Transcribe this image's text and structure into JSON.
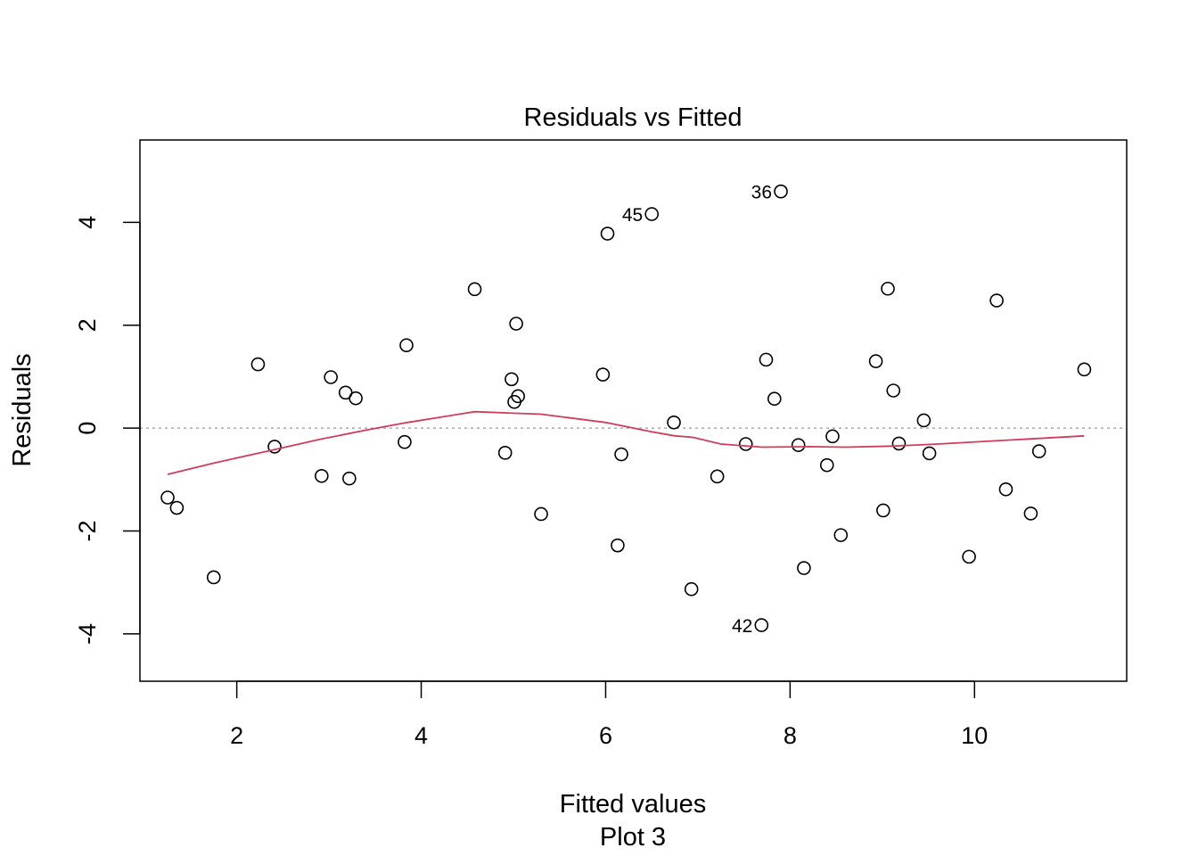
{
  "chart_data": {
    "type": "scatter",
    "title": "Residuals vs Fitted",
    "xlabel": "Fitted values",
    "subtitle": "Plot 3",
    "ylabel": "Residuals",
    "xlim": [
      0.95,
      11.65
    ],
    "ylim": [
      -4.92,
      5.6
    ],
    "x_ticks": [
      2,
      4,
      6,
      8,
      10
    ],
    "y_ticks": [
      -4,
      -2,
      0,
      2,
      4
    ],
    "grid": false,
    "legend": "none",
    "reference_line": {
      "y": 0,
      "style": "dotted",
      "color": "#aaaaaa"
    },
    "points": [
      {
        "x": 1.25,
        "y": -1.35
      },
      {
        "x": 1.35,
        "y": -1.55
      },
      {
        "x": 1.75,
        "y": -2.9
      },
      {
        "x": 2.23,
        "y": 1.24
      },
      {
        "x": 2.41,
        "y": -0.36
      },
      {
        "x": 2.92,
        "y": -0.93
      },
      {
        "x": 3.02,
        "y": 0.99
      },
      {
        "x": 3.18,
        "y": 0.69
      },
      {
        "x": 3.22,
        "y": -0.98
      },
      {
        "x": 3.29,
        "y": 0.58
      },
      {
        "x": 3.82,
        "y": -0.27
      },
      {
        "x": 3.84,
        "y": 1.61
      },
      {
        "x": 4.58,
        "y": 2.7
      },
      {
        "x": 4.91,
        "y": -0.48
      },
      {
        "x": 4.98,
        "y": 0.95
      },
      {
        "x": 5.01,
        "y": 0.51
      },
      {
        "x": 5.03,
        "y": 2.03
      },
      {
        "x": 5.05,
        "y": 0.62
      },
      {
        "x": 5.3,
        "y": -1.67
      },
      {
        "x": 5.97,
        "y": 1.04
      },
      {
        "x": 6.02,
        "y": 3.78
      },
      {
        "x": 6.13,
        "y": -2.28
      },
      {
        "x": 6.17,
        "y": -0.51
      },
      {
        "x": 6.5,
        "y": 4.16,
        "label": "45"
      },
      {
        "x": 6.74,
        "y": 0.11
      },
      {
        "x": 6.93,
        "y": -3.13
      },
      {
        "x": 7.21,
        "y": -0.94
      },
      {
        "x": 7.52,
        "y": -0.31
      },
      {
        "x": 7.69,
        "y": -3.83,
        "label": "42"
      },
      {
        "x": 7.74,
        "y": 1.33
      },
      {
        "x": 7.83,
        "y": 0.57
      },
      {
        "x": 7.9,
        "y": 4.6,
        "label": "36"
      },
      {
        "x": 8.09,
        "y": -0.33
      },
      {
        "x": 8.15,
        "y": -2.72
      },
      {
        "x": 8.4,
        "y": -0.72
      },
      {
        "x": 8.46,
        "y": -0.16
      },
      {
        "x": 8.55,
        "y": -2.08
      },
      {
        "x": 8.93,
        "y": 1.3
      },
      {
        "x": 9.01,
        "y": -1.6
      },
      {
        "x": 9.06,
        "y": 2.71
      },
      {
        "x": 9.12,
        "y": 0.73
      },
      {
        "x": 9.18,
        "y": -0.3
      },
      {
        "x": 9.45,
        "y": 0.15
      },
      {
        "x": 9.51,
        "y": -0.49
      },
      {
        "x": 9.94,
        "y": -2.5
      },
      {
        "x": 10.24,
        "y": 2.48
      },
      {
        "x": 10.34,
        "y": -1.19
      },
      {
        "x": 10.61,
        "y": -1.66
      },
      {
        "x": 10.7,
        "y": -0.45
      },
      {
        "x": 11.19,
        "y": 1.14
      }
    ],
    "smoother": {
      "color": "#d03c5a",
      "x": [
        1.25,
        1.75,
        2.3,
        2.9,
        3.4,
        3.85,
        4.58,
        5.0,
        5.3,
        6.0,
        6.5,
        6.75,
        6.95,
        7.25,
        7.7,
        8.2,
        8.6,
        9.1,
        9.6,
        10.2,
        10.7,
        11.19
      ],
      "y": [
        -0.9,
        -0.68,
        -0.46,
        -0.22,
        -0.04,
        0.11,
        0.32,
        0.29,
        0.27,
        0.11,
        -0.07,
        -0.15,
        -0.18,
        -0.31,
        -0.37,
        -0.36,
        -0.37,
        -0.35,
        -0.31,
        -0.25,
        -0.2,
        -0.15
      ]
    }
  }
}
